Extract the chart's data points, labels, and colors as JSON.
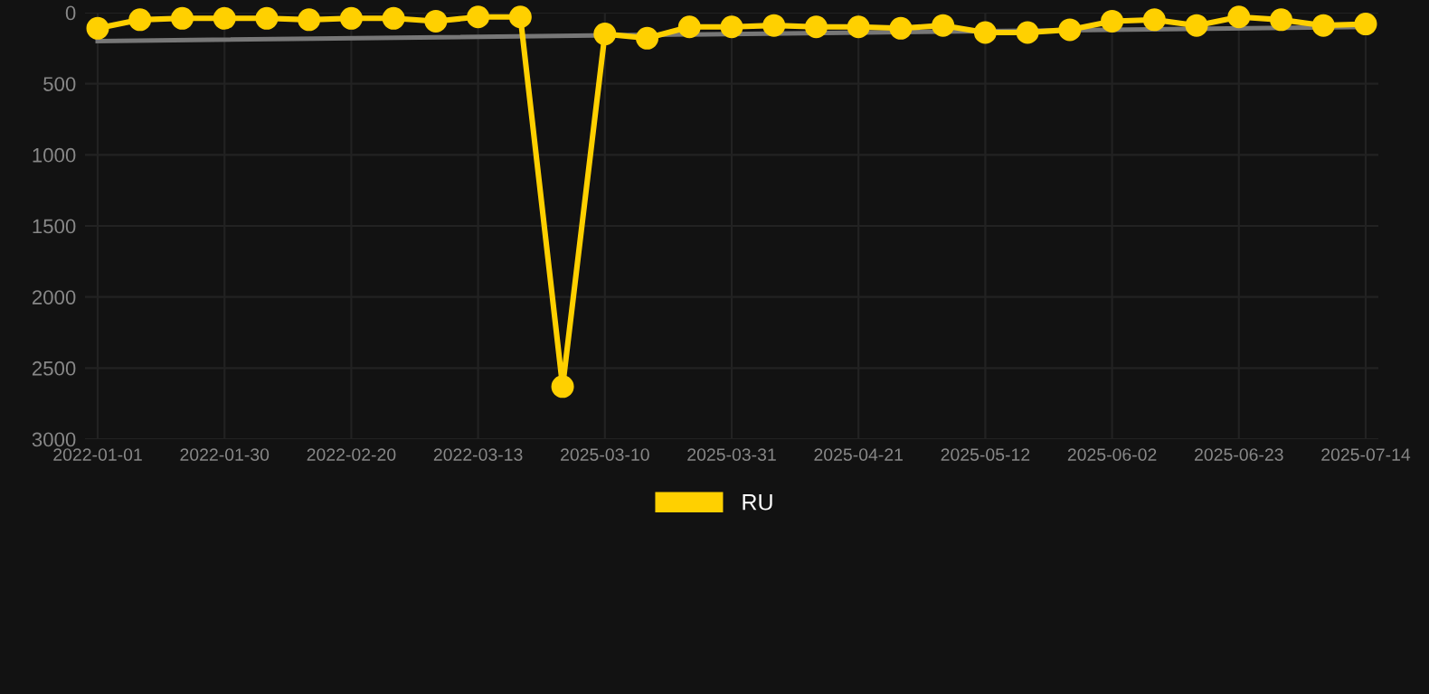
{
  "chart_data": {
    "type": "line",
    "categories": [
      "2022-01-01",
      null,
      null,
      "2022-01-30",
      null,
      null,
      "2022-02-20",
      null,
      null,
      "2022-03-13",
      null,
      null,
      "2025-03-10",
      null,
      null,
      "2025-03-31",
      null,
      null,
      "2025-04-21",
      null,
      null,
      "2025-05-12",
      null,
      null,
      "2025-06-02",
      null,
      null,
      "2025-06-23",
      null,
      null,
      "2025-07-14"
    ],
    "series": [
      {
        "name": "RU",
        "color": "#ffd000",
        "marker": "circle",
        "values": [
          110,
          50,
          40,
          40,
          40,
          50,
          40,
          40,
          60,
          30,
          30,
          2630,
          150,
          180,
          100,
          100,
          90,
          100,
          100,
          110,
          90,
          140,
          140,
          120,
          60,
          50,
          90,
          30,
          50,
          90,
          80
        ]
      },
      {
        "color": "#777777",
        "marker": "none",
        "values": [
          200,
          null,
          null,
          null,
          null,
          null,
          null,
          null,
          null,
          null,
          null,
          null,
          null,
          null,
          null,
          null,
          null,
          null,
          null,
          null,
          null,
          null,
          null,
          null,
          null,
          null,
          null,
          null,
          null,
          null,
          100
        ]
      }
    ],
    "ylim": [
      3000,
      0
    ],
    "yticks": [
      0,
      500,
      1000,
      1500,
      2000,
      2500,
      3000
    ],
    "grid": true,
    "legend": "bottom",
    "line_style": "solid"
  }
}
